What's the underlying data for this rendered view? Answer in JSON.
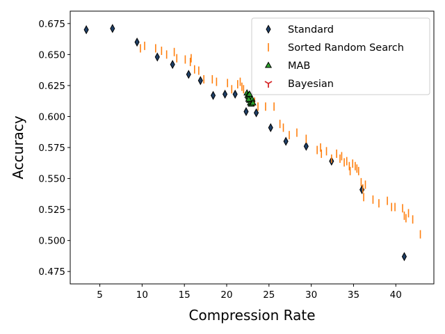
{
  "chart_data": {
    "type": "scatter",
    "xlabel": "Compression Rate",
    "ylabel": "Accuracy",
    "xlim": [
      1.5,
      44.5
    ],
    "ylim": [
      0.465,
      0.685
    ],
    "x_ticks": [
      5,
      10,
      15,
      20,
      25,
      30,
      35,
      40
    ],
    "x_tick_labels": [
      "5",
      "10",
      "15",
      "20",
      "25",
      "30",
      "35",
      "40"
    ],
    "y_ticks": [
      0.475,
      0.5,
      0.525,
      0.55,
      0.575,
      0.6,
      0.625,
      0.65,
      0.675
    ],
    "y_tick_labels": [
      "0.475",
      "0.500",
      "0.525",
      "0.550",
      "0.575",
      "0.600",
      "0.625",
      "0.650",
      "0.675"
    ],
    "grid": false,
    "legend_position": "top-right",
    "series": [
      {
        "name": "Standard",
        "marker": "thin-diamond",
        "color": "#1f3f66",
        "edge_color": "#000000",
        "points": [
          [
            3.4,
            0.67
          ],
          [
            6.5,
            0.671
          ],
          [
            9.4,
            0.66
          ],
          [
            11.8,
            0.648
          ],
          [
            13.6,
            0.642
          ],
          [
            15.5,
            0.634
          ],
          [
            16.9,
            0.629
          ],
          [
            18.4,
            0.617
          ],
          [
            19.8,
            0.618
          ],
          [
            21.0,
            0.618
          ],
          [
            22.3,
            0.604
          ],
          [
            23.5,
            0.603
          ],
          [
            25.2,
            0.591
          ],
          [
            27.0,
            0.58
          ],
          [
            29.4,
            0.576
          ],
          [
            32.4,
            0.564
          ],
          [
            36.0,
            0.541
          ],
          [
            41.0,
            0.487
          ]
        ]
      },
      {
        "name": "Sorted Random Search",
        "marker": "vline",
        "color": "#ff7f0e",
        "points": [
          [
            9.8,
            0.655
          ],
          [
            10.3,
            0.657
          ],
          [
            11.6,
            0.655
          ],
          [
            12.3,
            0.653
          ],
          [
            12.9,
            0.65
          ],
          [
            13.8,
            0.652
          ],
          [
            14.1,
            0.647
          ],
          [
            15.1,
            0.646
          ],
          [
            15.7,
            0.644
          ],
          [
            15.8,
            0.647
          ],
          [
            16.2,
            0.638
          ],
          [
            16.7,
            0.637
          ],
          [
            17.3,
            0.63
          ],
          [
            18.3,
            0.63
          ],
          [
            18.8,
            0.628
          ],
          [
            20.1,
            0.627
          ],
          [
            20.6,
            0.622
          ],
          [
            21.3,
            0.626
          ],
          [
            21.6,
            0.628
          ],
          [
            21.8,
            0.624
          ],
          [
            22.0,
            0.622
          ],
          [
            23.3,
            0.612
          ],
          [
            23.7,
            0.608
          ],
          [
            24.6,
            0.608
          ],
          [
            25.6,
            0.608
          ],
          [
            26.3,
            0.594
          ],
          [
            26.7,
            0.591
          ],
          [
            27.4,
            0.585
          ],
          [
            28.3,
            0.587
          ],
          [
            29.4,
            0.582
          ],
          [
            30.7,
            0.573
          ],
          [
            31.1,
            0.575
          ],
          [
            31.2,
            0.57
          ],
          [
            31.8,
            0.572
          ],
          [
            32.4,
            0.566
          ],
          [
            33.0,
            0.57
          ],
          [
            33.4,
            0.566
          ],
          [
            33.6,
            0.568
          ],
          [
            33.9,
            0.563
          ],
          [
            34.2,
            0.564
          ],
          [
            34.5,
            0.56
          ],
          [
            34.6,
            0.556
          ],
          [
            34.9,
            0.562
          ],
          [
            35.2,
            0.56
          ],
          [
            35.4,
            0.558
          ],
          [
            35.6,
            0.556
          ],
          [
            35.9,
            0.547
          ],
          [
            36.1,
            0.542
          ],
          [
            36.2,
            0.535
          ],
          [
            36.4,
            0.545
          ],
          [
            37.3,
            0.533
          ],
          [
            38.0,
            0.53
          ],
          [
            39.0,
            0.532
          ],
          [
            39.5,
            0.527
          ],
          [
            39.9,
            0.527
          ],
          [
            40.8,
            0.526
          ],
          [
            41.0,
            0.52
          ],
          [
            41.2,
            0.518
          ],
          [
            41.5,
            0.522
          ],
          [
            42.0,
            0.517
          ],
          [
            42.9,
            0.505
          ]
        ]
      },
      {
        "name": "MAB",
        "marker": "triangle",
        "color": "#2ca02c",
        "edge_color": "#000000",
        "points": [
          [
            22.4,
            0.619
          ],
          [
            22.5,
            0.617
          ],
          [
            22.6,
            0.616
          ],
          [
            22.7,
            0.613
          ],
          [
            22.8,
            0.615
          ],
          [
            22.9,
            0.612
          ],
          [
            23.0,
            0.614
          ],
          [
            22.8,
            0.611
          ],
          [
            22.9,
            0.61
          ],
          [
            23.1,
            0.611
          ],
          [
            22.6,
            0.614
          ],
          [
            22.7,
            0.618
          ]
        ]
      },
      {
        "name": "Bayesian",
        "marker": "tri-down",
        "color": "#d62728",
        "points": []
      }
    ]
  }
}
